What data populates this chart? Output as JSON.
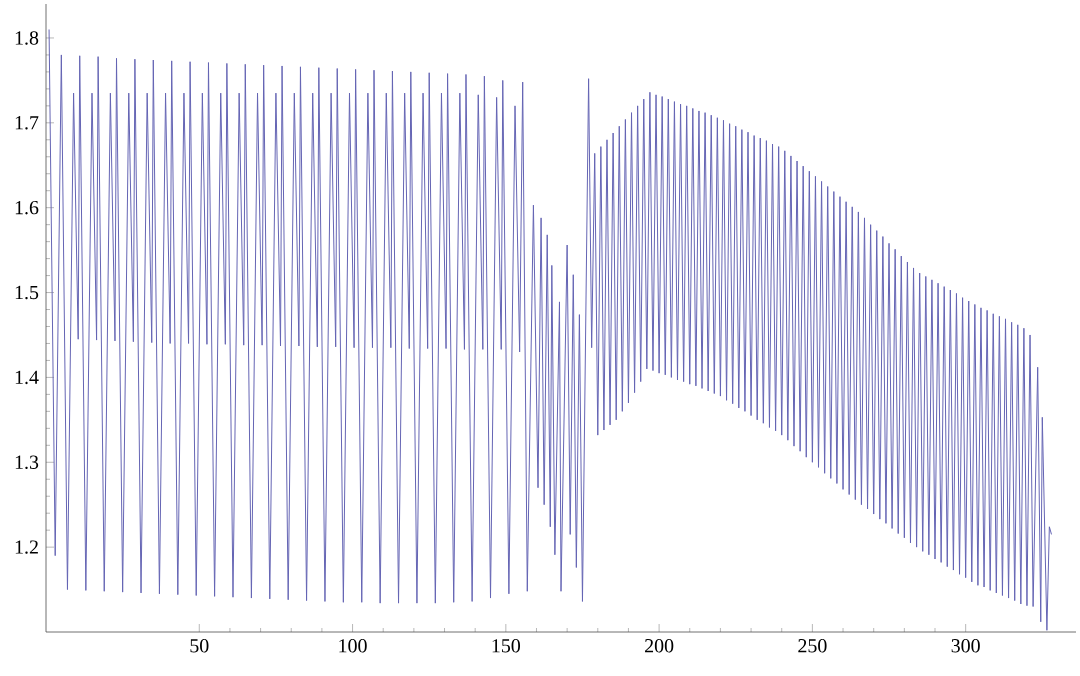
{
  "chart_data": {
    "type": "line",
    "color": "#6464b4",
    "marker": "none",
    "line_style": "solid",
    "xlim": [
      0,
      336
    ],
    "ylim": [
      1.1,
      1.84
    ],
    "xticks": [
      50,
      100,
      150,
      200,
      250,
      300
    ],
    "yticks": [
      1.2,
      1.3,
      1.4,
      1.5,
      1.6,
      1.7,
      1.8
    ],
    "x": [
      1,
      3,
      5,
      7,
      9,
      10.5,
      11,
      13,
      15,
      16.5,
      17,
      19,
      21,
      22.5,
      23,
      25,
      27,
      28.5,
      29,
      31,
      33,
      34.5,
      35,
      37,
      39,
      40.5,
      41,
      43,
      45,
      46.5,
      47,
      49,
      51,
      52.5,
      53,
      55,
      57,
      58.5,
      59,
      61,
      63,
      64.5,
      65,
      67,
      69,
      70.5,
      71,
      73,
      75,
      76.5,
      77,
      79,
      81,
      82.5,
      83,
      85,
      87,
      88.5,
      89,
      91,
      93,
      94.5,
      95,
      97,
      99,
      100.5,
      101,
      103,
      105,
      106.5,
      107,
      109,
      111,
      112.5,
      113,
      115,
      117,
      118.5,
      119,
      121,
      123,
      124.5,
      125,
      127,
      129,
      130.5,
      131,
      133,
      135,
      136.5,
      137,
      139,
      141,
      142.5,
      143,
      145,
      147,
      148.5,
      149,
      151,
      153,
      154.5,
      155.5,
      157,
      159,
      160.5,
      161.5,
      162.5,
      163.5,
      164.5,
      165,
      166,
      167.5,
      168,
      170,
      171,
      172,
      173,
      174,
      175,
      177,
      178,
      179,
      180,
      181,
      182,
      183,
      184,
      185,
      186,
      187,
      188,
      189,
      190,
      191,
      192,
      193,
      194,
      195,
      196,
      197,
      198,
      199,
      200,
      201,
      202,
      203,
      204,
      205,
      206,
      207,
      208,
      209,
      210,
      211,
      212,
      213,
      214,
      215,
      216,
      217,
      218,
      219,
      220,
      221,
      222,
      223,
      224,
      225,
      226,
      227,
      228,
      229,
      230,
      231,
      232,
      233,
      234,
      235,
      236,
      237,
      238,
      239,
      240,
      241,
      242,
      243,
      244,
      245,
      246,
      247,
      248,
      249,
      250,
      251,
      252,
      253,
      254,
      255,
      256,
      257,
      258,
      259,
      260,
      261,
      262,
      263,
      264,
      265,
      266,
      267,
      268,
      269,
      270,
      271,
      272,
      273,
      274,
      275,
      276,
      277,
      278,
      279,
      280,
      281,
      282,
      283,
      284,
      285,
      286,
      287,
      288,
      289,
      290,
      291,
      292,
      293,
      294,
      295,
      296,
      297,
      298,
      299,
      300,
      301,
      302,
      303,
      304,
      305,
      306,
      307,
      308,
      309,
      310,
      311,
      312,
      313,
      314,
      315,
      316,
      317,
      318,
      319,
      320,
      321,
      322,
      323.5,
      324.5,
      325,
      326.5,
      327.3,
      328
    ],
    "values": [
      1.81,
      1.19,
      1.78,
      1.15,
      1.735,
      1.445,
      1.779,
      1.149,
      1.735,
      1.444,
      1.778,
      1.148,
      1.735,
      1.443,
      1.776,
      1.147,
      1.735,
      1.442,
      1.775,
      1.146,
      1.735,
      1.441,
      1.774,
      1.145,
      1.735,
      1.44,
      1.773,
      1.144,
      1.735,
      1.44,
      1.772,
      1.143,
      1.735,
      1.439,
      1.771,
      1.142,
      1.735,
      1.439,
      1.77,
      1.141,
      1.735,
      1.438,
      1.769,
      1.14,
      1.735,
      1.438,
      1.768,
      1.139,
      1.735,
      1.437,
      1.767,
      1.138,
      1.735,
      1.437,
      1.766,
      1.137,
      1.735,
      1.436,
      1.765,
      1.136,
      1.735,
      1.436,
      1.764,
      1.135,
      1.735,
      1.435,
      1.763,
      1.135,
      1.735,
      1.435,
      1.762,
      1.134,
      1.735,
      1.435,
      1.761,
      1.134,
      1.735,
      1.434,
      1.76,
      1.134,
      1.735,
      1.434,
      1.759,
      1.134,
      1.735,
      1.434,
      1.758,
      1.135,
      1.735,
      1.433,
      1.757,
      1.136,
      1.733,
      1.433,
      1.755,
      1.14,
      1.73,
      1.433,
      1.75,
      1.145,
      1.72,
      1.43,
      1.748,
      1.148,
      1.603,
      1.27,
      1.588,
      1.25,
      1.568,
      1.224,
      1.532,
      1.191,
      1.489,
      1.148,
      1.556,
      1.215,
      1.521,
      1.176,
      1.474,
      1.136,
      1.752,
      1.435,
      1.664,
      1.332,
      1.672,
      1.338,
      1.68,
      1.344,
      1.688,
      1.35,
      1.696,
      1.36,
      1.704,
      1.37,
      1.712,
      1.382,
      1.72,
      1.395,
      1.728,
      1.41,
      1.736,
      1.408,
      1.733,
      1.405,
      1.731,
      1.403,
      1.728,
      1.4,
      1.725,
      1.397,
      1.722,
      1.395,
      1.72,
      1.392,
      1.717,
      1.39,
      1.714,
      1.387,
      1.712,
      1.384,
      1.709,
      1.381,
      1.706,
      1.378,
      1.703,
      1.373,
      1.699,
      1.369,
      1.696,
      1.364,
      1.692,
      1.36,
      1.689,
      1.355,
      1.685,
      1.35,
      1.682,
      1.346,
      1.679,
      1.341,
      1.675,
      1.337,
      1.672,
      1.332,
      1.667,
      1.326,
      1.661,
      1.319,
      1.655,
      1.313,
      1.649,
      1.306,
      1.643,
      1.3,
      1.637,
      1.294,
      1.631,
      1.287,
      1.625,
      1.281,
      1.619,
      1.275,
      1.613,
      1.268,
      1.607,
      1.262,
      1.601,
      1.256,
      1.595,
      1.25,
      1.588,
      1.245,
      1.58,
      1.239,
      1.573,
      1.233,
      1.566,
      1.228,
      1.558,
      1.222,
      1.551,
      1.216,
      1.543,
      1.211,
      1.536,
      1.205,
      1.529,
      1.2,
      1.523,
      1.195,
      1.519,
      1.191,
      1.515,
      1.186,
      1.511,
      1.182,
      1.507,
      1.177,
      1.503,
      1.173,
      1.499,
      1.168,
      1.494,
      1.164,
      1.49,
      1.159,
      1.486,
      1.155,
      1.482,
      1.153,
      1.479,
      1.149,
      1.475,
      1.146,
      1.472,
      1.143,
      1.469,
      1.14,
      1.465,
      1.137,
      1.462,
      1.133,
      1.458,
      1.131,
      1.45,
      1.13,
      1.412,
      1.112,
      1.353,
      1.102,
      1.224,
      1.215
    ]
  }
}
